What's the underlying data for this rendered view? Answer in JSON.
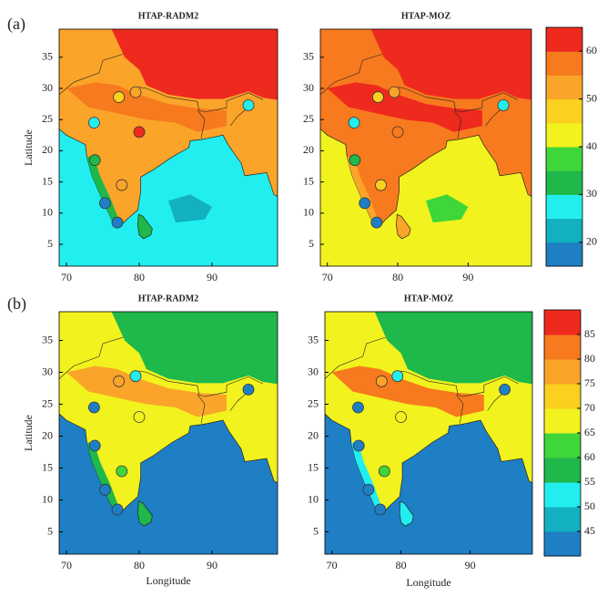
{
  "figure": {
    "panels": [
      {
        "label": "(a)",
        "maps": [
          {
            "title": "HTAP-RADM2"
          },
          {
            "title": "HTAP-MOZ"
          }
        ],
        "colorbar": {
          "lim": [
            15,
            65
          ],
          "ticks": [
            20,
            30,
            40,
            50,
            60
          ],
          "colors": [
            "#1f7fc4",
            "#12b0c0",
            "#22eef0",
            "#1fb84a",
            "#3fd63a",
            "#f2f21e",
            "#fbd01e",
            "#fba42a",
            "#f77a1e",
            "#ee2a1e"
          ]
        }
      },
      {
        "label": "(b)",
        "maps": [
          {
            "title": "HTAP-RADM2"
          },
          {
            "title": "HTAP-MOZ"
          }
        ],
        "colorbar": {
          "lim": [
            40,
            90
          ],
          "ticks": [
            45,
            50,
            55,
            60,
            65,
            70,
            75,
            80,
            85
          ],
          "colors": [
            "#1f7fc4",
            "#12b0c0",
            "#22eef0",
            "#1fb84a",
            "#3fd63a",
            "#f2f21e",
            "#fbd01e",
            "#fba42a",
            "#f77a1e",
            "#ee2a1e"
          ]
        }
      }
    ],
    "x_axis": {
      "label": "Longitude",
      "lim": [
        69,
        99
      ],
      "ticks": [
        70,
        80,
        90
      ]
    },
    "y_axis": {
      "label": "Latitude",
      "lim": [
        1.5,
        39.5
      ],
      "ticks": [
        5,
        10,
        15,
        20,
        25,
        30,
        35
      ]
    }
  }
}
